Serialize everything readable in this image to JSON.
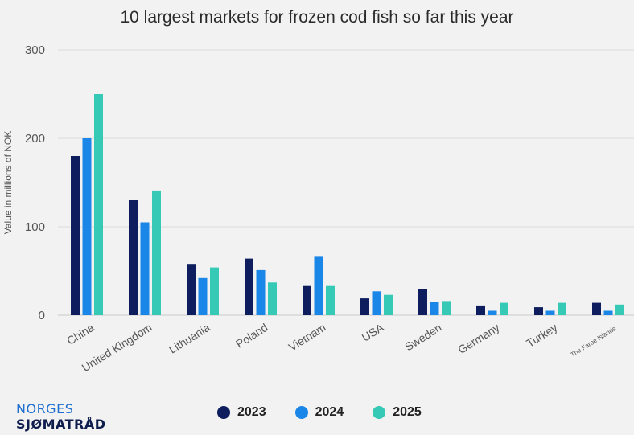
{
  "chart_data": {
    "type": "bar",
    "title": "10 largest markets for frozen cod fish so far this year",
    "xlabel": "",
    "ylabel": "Value in millions of NOK",
    "ylim": [
      0,
      300
    ],
    "yticks": [
      0,
      100,
      200,
      300
    ],
    "grid": true,
    "legend_position": "bottom",
    "categories": [
      "China",
      "United Kingdom",
      "Lithuania",
      "Poland",
      "Vietnam",
      "USA",
      "Sweden",
      "Germany",
      "Turkey",
      "The Faroe Islands"
    ],
    "series": [
      {
        "name": "2023",
        "color": "#0e1d5e",
        "values": [
          180,
          130,
          58,
          64,
          33,
          19,
          30,
          11,
          9,
          14
        ]
      },
      {
        "name": "2024",
        "color": "#1a86e8",
        "values": [
          200,
          105,
          42,
          51,
          66,
          27,
          15,
          5,
          5,
          5
        ]
      },
      {
        "name": "2025",
        "color": "#35c9b6",
        "values": [
          250,
          141,
          54,
          37,
          33,
          23,
          16,
          14,
          14,
          12
        ]
      }
    ]
  },
  "branding": {
    "logo_line1": "NORGES",
    "logo_line2": "SJØMATRÅD"
  }
}
